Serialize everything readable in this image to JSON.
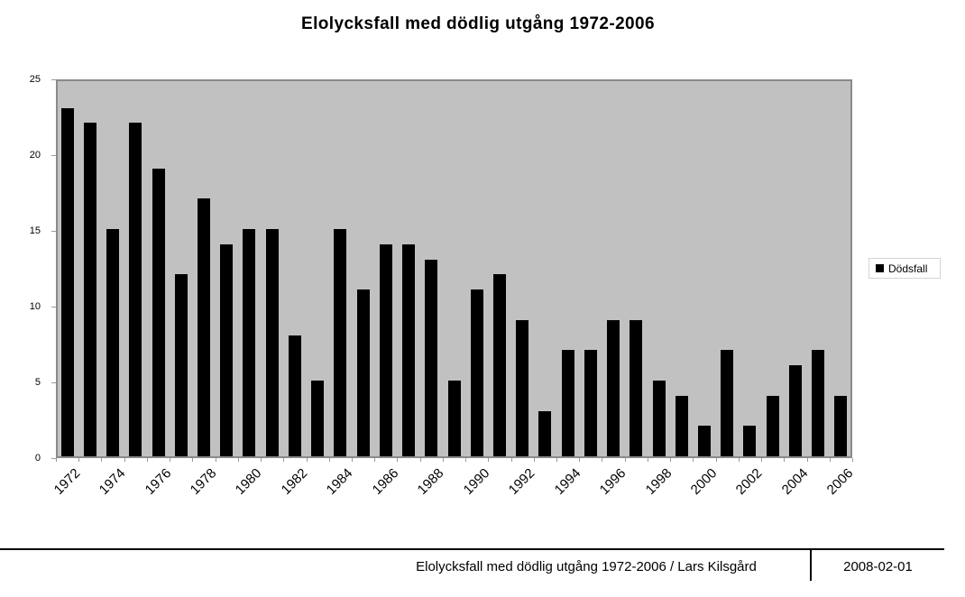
{
  "title": "Elolycksfall med dödlig utgång 1972-2006",
  "legend": {
    "label": "Dödsfall",
    "swatch_icon": "black-square-icon",
    "swatch_color": "#000000"
  },
  "footer": {
    "caption": "Elolycksfall med dödlig utgång 1972-2006 / Lars Kilsgård",
    "date": "2008-02-01"
  },
  "colors": {
    "plot_fill": "#c1c1c1",
    "plot_border": "#8a8a8a",
    "bar": "#000000",
    "tick": "#9a9a9a",
    "legend_border": "#d4d4d4",
    "background": "#ffffff"
  },
  "chart_data": {
    "type": "bar",
    "title": "Elolycksfall med dödlig utgång 1972-2006",
    "series_name": "Dödsfall",
    "categories": [
      1972,
      1973,
      1974,
      1975,
      1976,
      1977,
      1978,
      1979,
      1980,
      1981,
      1982,
      1983,
      1984,
      1985,
      1986,
      1987,
      1988,
      1989,
      1990,
      1991,
      1992,
      1993,
      1994,
      1995,
      1996,
      1997,
      1998,
      1999,
      2000,
      2001,
      2002,
      2003,
      2004,
      2005,
      2006
    ],
    "values": [
      23,
      22,
      15,
      22,
      19,
      12,
      17,
      14,
      15,
      15,
      8,
      5,
      15,
      11,
      14,
      14,
      13,
      5,
      11,
      12,
      9,
      3,
      7,
      7,
      9,
      9,
      5,
      4,
      2,
      7,
      2,
      4,
      6,
      7,
      4
    ],
    "xlabel": "",
    "ylabel": "",
    "ylim": [
      0,
      25
    ],
    "yticks": [
      0,
      5,
      10,
      15,
      20,
      25
    ],
    "xtick_labels": [
      "1972",
      "1974",
      "1976",
      "1978",
      "1980",
      "1982",
      "1984",
      "1986",
      "1988",
      "1990",
      "1992",
      "1994",
      "1996",
      "1998",
      "2000",
      "2002",
      "2004",
      "2006"
    ],
    "grid": false,
    "legend_position": "right",
    "bar_color": "#000000",
    "plot_background": "#c1c1c1"
  }
}
